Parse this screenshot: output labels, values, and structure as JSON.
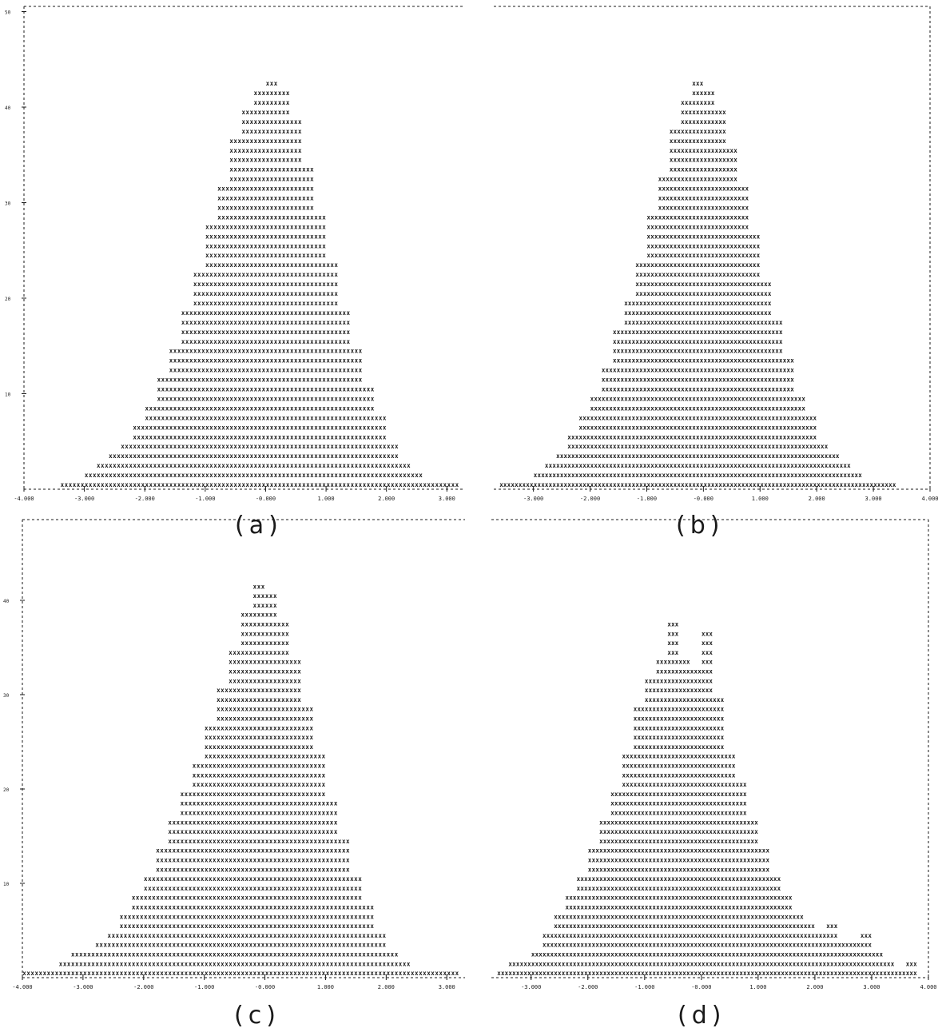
{
  "captions": {
    "a": "(a)",
    "b": "(b)",
    "c": "(c)",
    "d": "(d)"
  },
  "axis_text": {
    "top_y_ticks": [
      "50",
      "40",
      "30",
      "20",
      "10"
    ],
    "bottom_y_ticks": [
      "40",
      "30",
      "20",
      "10"
    ],
    "x_ticks_a": [
      "-4.000",
      "-3.000",
      "-2.000",
      "-1.000",
      "-0.000",
      "1.000",
      "2.000",
      "3.000"
    ],
    "x_ticks_b": [
      "-3.000",
      "-2.000",
      "-1.000",
      "-0.000",
      "1.000",
      "2.000",
      "3.000",
      "4.000"
    ],
    "x_ticks_c": [
      "-4.000",
      "-3.000",
      "-2.000",
      "-1.000",
      "-0.000",
      "1.000",
      "2.000",
      "3.000"
    ],
    "x_ticks_d": [
      "-3.000",
      "-2.000",
      "-1.000",
      "-0.000",
      "1.000",
      "2.000",
      "3.000",
      "4.000"
    ]
  },
  "colors": {
    "ink": "#1a1a1a",
    "background": "#ffffff"
  },
  "chart_data": [
    {
      "panel": "a",
      "type": "bar",
      "x_tick_values": [
        -4,
        -3,
        -2,
        -1,
        0,
        1,
        2,
        3
      ],
      "y_tick_values": [
        50,
        40,
        30,
        20,
        10
      ],
      "xlim": [
        -4.0,
        3.3
      ],
      "ylim": [
        0,
        50
      ],
      "bin_centers": [
        -3.3,
        -3.1,
        -2.9,
        -2.7,
        -2.5,
        -2.3,
        -2.1,
        -1.9,
        -1.7,
        -1.5,
        -1.3,
        -1.1,
        -0.9,
        -0.7,
        -0.5,
        -0.3,
        -0.1,
        0.1,
        0.3,
        0.5,
        0.7,
        0.9,
        1.1,
        1.3,
        1.5,
        1.7,
        1.9,
        2.1,
        2.3,
        2.5,
        2.7,
        2.9,
        3.1
      ],
      "counts": [
        1,
        1,
        2,
        3,
        4,
        5,
        7,
        9,
        12,
        15,
        19,
        23,
        28,
        32,
        37,
        40,
        42,
        43,
        42,
        39,
        34,
        29,
        24,
        19,
        15,
        11,
        8,
        5,
        3,
        2,
        1,
        1,
        1
      ]
    },
    {
      "panel": "b",
      "type": "bar",
      "x_tick_values": [
        -3,
        -2,
        -1,
        0,
        1,
        2,
        3,
        4
      ],
      "y_tick_values": [
        50,
        40,
        30,
        20,
        10
      ],
      "xlim": [
        -3.7,
        4.0
      ],
      "ylim": [
        0,
        50
      ],
      "bin_centers": [
        -3.5,
        -3.3,
        -3.1,
        -2.9,
        -2.7,
        -2.5,
        -2.3,
        -2.1,
        -1.9,
        -1.7,
        -1.5,
        -1.3,
        -1.1,
        -0.9,
        -0.7,
        -0.5,
        -0.3,
        -0.1,
        0.1,
        0.3,
        0.5,
        0.7,
        0.9,
        1.1,
        1.3,
        1.5,
        1.7,
        1.9,
        2.1,
        2.3,
        2.5,
        2.7,
        2.9,
        3.1,
        3.3
      ],
      "counts": [
        1,
        1,
        1,
        2,
        3,
        4,
        6,
        8,
        10,
        13,
        17,
        20,
        24,
        29,
        33,
        38,
        41,
        43,
        42,
        40,
        36,
        32,
        27,
        22,
        18,
        14,
        10,
        8,
        5,
        4,
        3,
        2,
        1,
        1,
        1
      ]
    },
    {
      "panel": "c",
      "type": "bar",
      "x_tick_values": [
        -4,
        -3,
        -2,
        -1,
        0,
        1,
        2,
        3
      ],
      "y_tick_values": [
        40,
        30,
        20,
        10
      ],
      "xlim": [
        -4.0,
        3.3
      ],
      "ylim": [
        0,
        45
      ],
      "bin_centers": [
        -3.9,
        -3.7,
        -3.5,
        -3.3,
        -3.1,
        -2.9,
        -2.7,
        -2.5,
        -2.3,
        -2.1,
        -1.9,
        -1.7,
        -1.5,
        -1.3,
        -1.1,
        -0.9,
        -0.7,
        -0.5,
        -0.3,
        -0.1,
        0.1,
        0.3,
        0.5,
        0.7,
        0.9,
        1.1,
        1.3,
        1.5,
        1.7,
        1.9,
        2.1,
        2.3,
        2.5,
        2.7,
        2.9,
        3.1
      ],
      "counts": [
        1,
        1,
        1,
        2,
        3,
        3,
        4,
        5,
        7,
        9,
        11,
        14,
        17,
        20,
        23,
        27,
        31,
        35,
        39,
        42,
        41,
        38,
        34,
        29,
        24,
        19,
        15,
        11,
        8,
        5,
        3,
        2,
        1,
        1,
        1,
        1
      ]
    },
    {
      "panel": "d",
      "type": "bar",
      "x_tick_values": [
        -3,
        -2,
        -1,
        0,
        1,
        2,
        3,
        4
      ],
      "y_tick_values": [
        40,
        30,
        20,
        10
      ],
      "xlim": [
        -3.7,
        4.0
      ],
      "ylim": [
        0,
        45
      ],
      "bin_centers": [
        -3.5,
        -3.3,
        -3.1,
        -2.9,
        -2.7,
        -2.5,
        -2.3,
        -2.1,
        -1.9,
        -1.7,
        -1.5,
        -1.3,
        -1.1,
        -0.9,
        -0.7,
        -0.5,
        -0.3,
        -0.1,
        0.1,
        0.3,
        0.5,
        0.7,
        0.9,
        1.1,
        1.3,
        1.5,
        1.7,
        1.9,
        2.1,
        2.3,
        2.5,
        2.7,
        2.9,
        3.1,
        3.3,
        3.5,
        3.7
      ],
      "counts": [
        1,
        2,
        2,
        3,
        5,
        7,
        9,
        11,
        14,
        17,
        20,
        24,
        29,
        32,
        34,
        38,
        34,
        33,
        37,
        30,
        24,
        21,
        17,
        14,
        11,
        9,
        7,
        6,
        5,
        6,
        4,
        4,
        5,
        3,
        2,
        1,
        2
      ]
    }
  ]
}
